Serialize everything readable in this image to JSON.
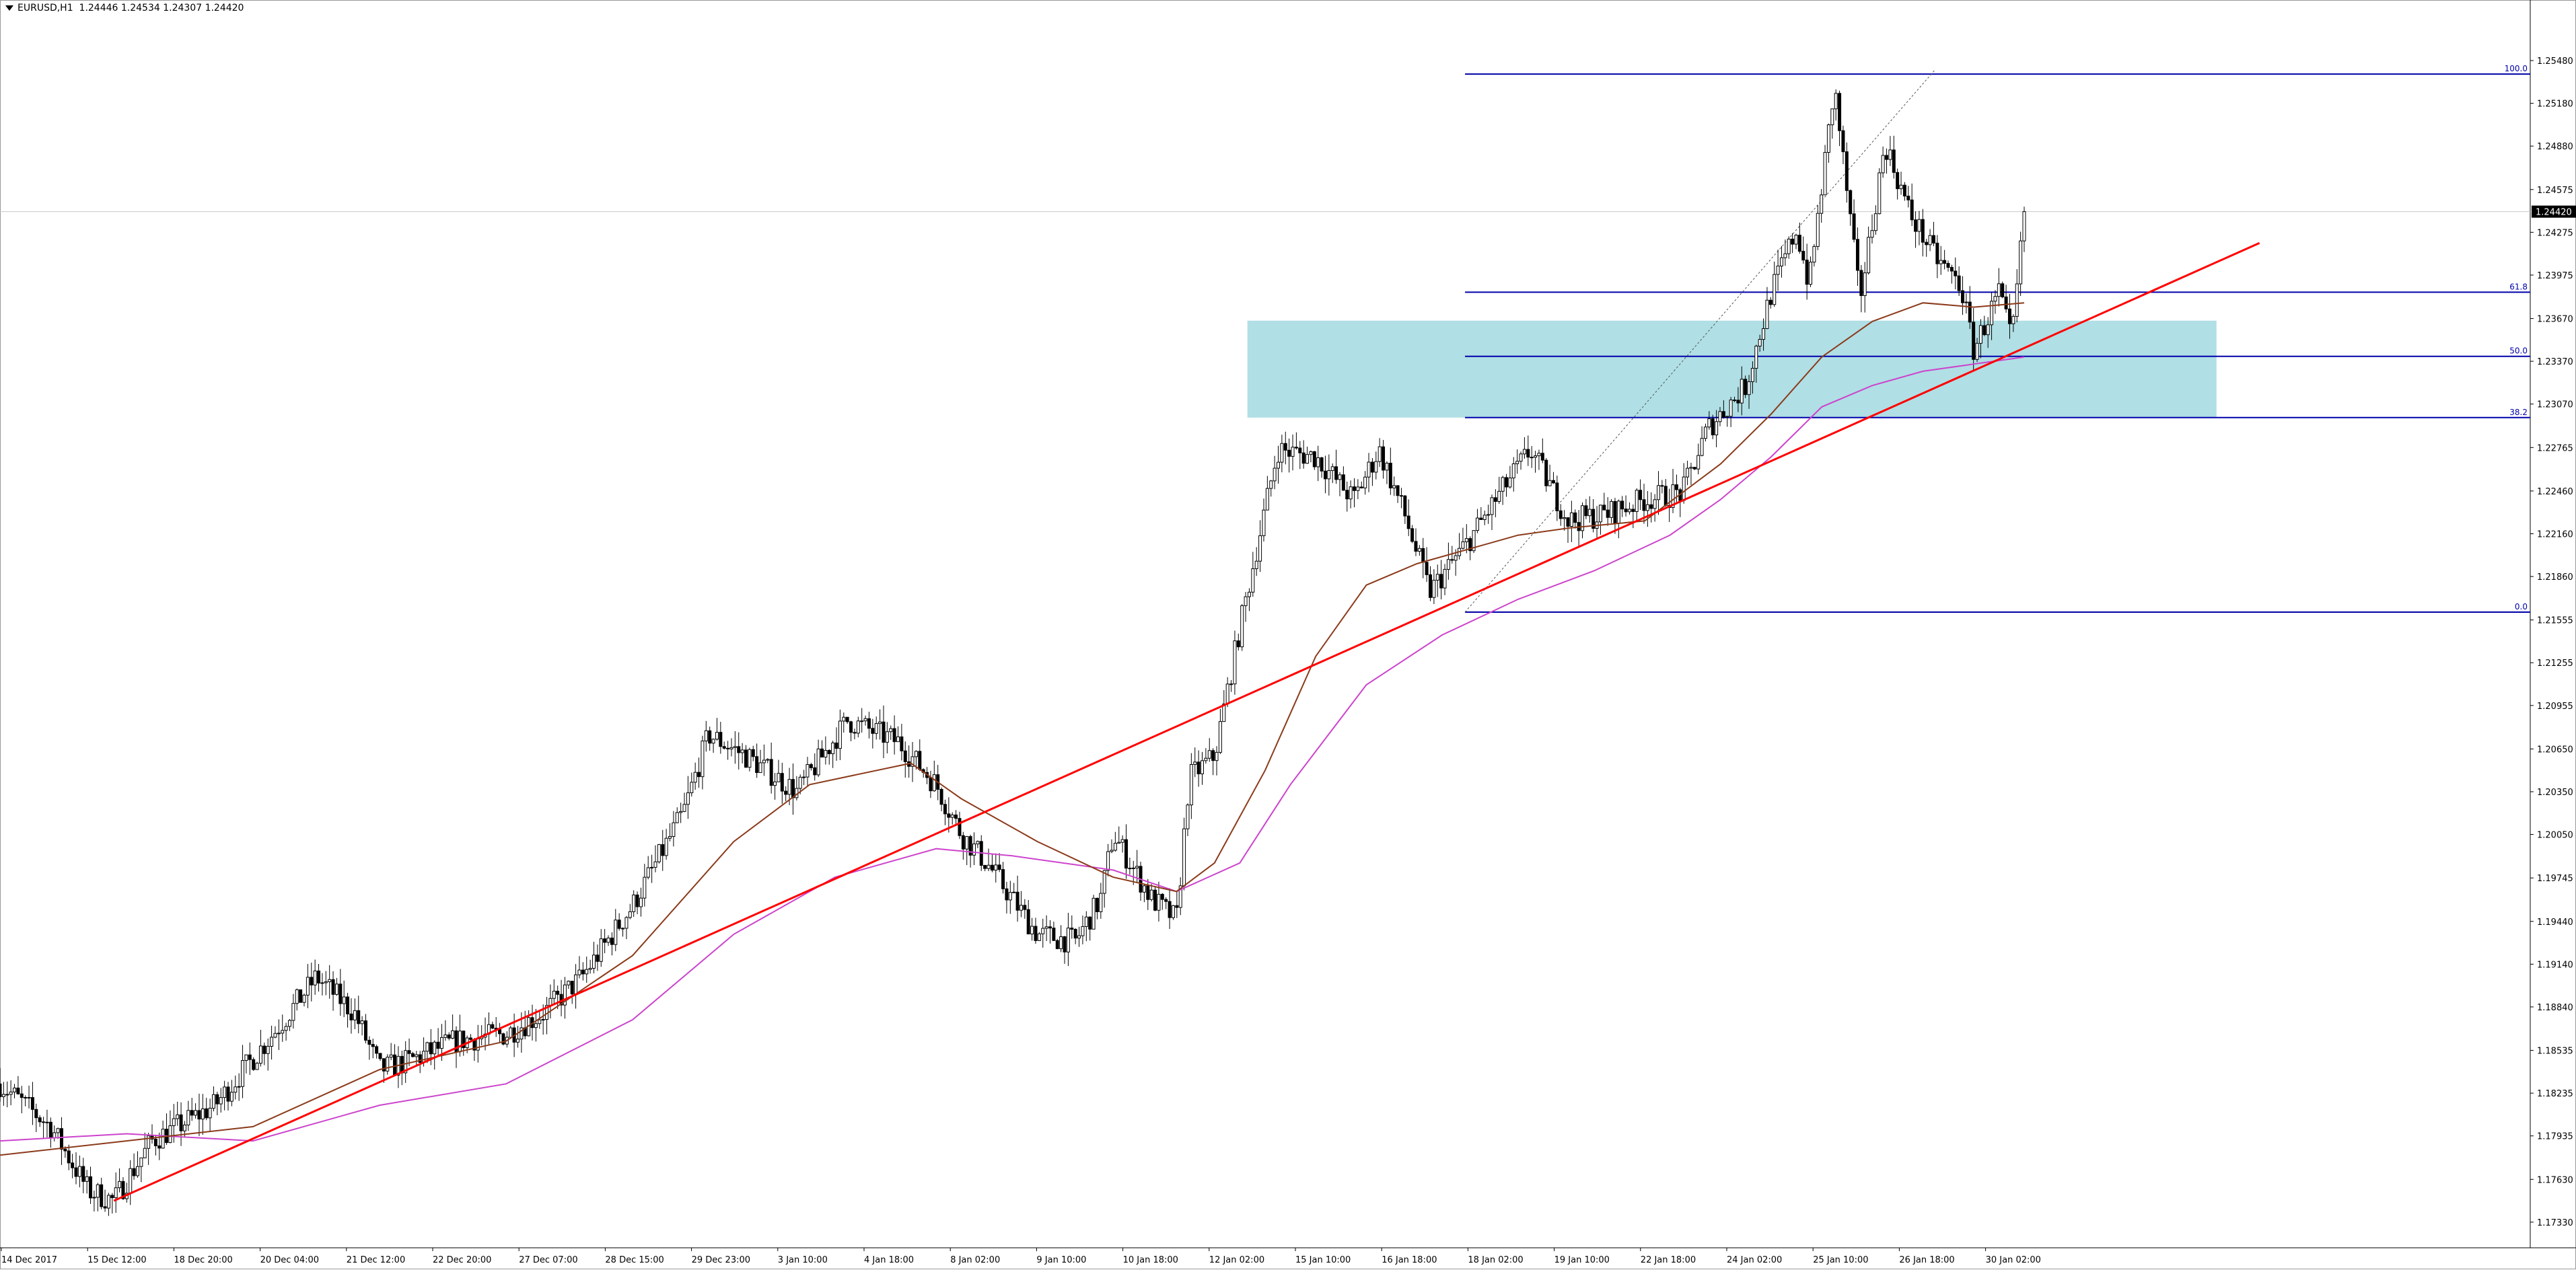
{
  "header": {
    "title": "EURUSD,H1",
    "ohlc": "1.24446 1.24534 1.24307 1.24420"
  },
  "price_tag": "1.24420",
  "fib_labels": [
    "100.0",
    "61.8",
    "50.0",
    "38.2",
    "0.0"
  ],
  "colors": {
    "background": "#ffffff",
    "candle": "#000000",
    "ma_fast": "#8b3a1a",
    "ma_slow": "#cc44cc",
    "trendline": "#ff0000",
    "fib_lines": "#0000aa",
    "zone": "#b0dfe5",
    "price_tag_bg": "#000000"
  },
  "chart_data": {
    "type": "candlestick",
    "symbol": "EURUSD",
    "timeframe": "H1",
    "last": {
      "open": 1.24446,
      "high": 1.24534,
      "low": 1.24307,
      "close": 1.2442
    },
    "ylim": [
      1.1715,
      1.2582
    ],
    "y_ticks": [
      "1.25480",
      "1.25180",
      "1.24880",
      "1.24575",
      "1.24275",
      "1.23975",
      "1.23670",
      "1.23370",
      "1.23070",
      "1.22765",
      "1.22460",
      "1.22160",
      "1.21860",
      "1.21555",
      "1.21255",
      "1.20955",
      "1.20650",
      "1.20350",
      "1.20050",
      "1.19745",
      "1.19440",
      "1.19140",
      "1.18840",
      "1.18535",
      "1.18235",
      "1.17935",
      "1.17630",
      "1.17330"
    ],
    "x_ticks": [
      "14 Dec 2017",
      "15 Dec 12:00",
      "18 Dec 20:00",
      "20 Dec 04:00",
      "21 Dec 12:00",
      "22 Dec 20:00",
      "27 Dec 07:00",
      "28 Dec 15:00",
      "29 Dec 23:00",
      "3 Jan 10:00",
      "4 Jan 18:00",
      "8 Jan 02:00",
      "9 Jan 10:00",
      "10 Jan 18:00",
      "12 Jan 02:00",
      "15 Jan 10:00",
      "16 Jan 18:00",
      "18 Jan 02:00",
      "19 Jan 10:00",
      "22 Jan 18:00",
      "24 Jan 02:00",
      "25 Jan 10:00",
      "26 Jan 18:00",
      "30 Jan 02:00"
    ],
    "price_path": [
      [
        0,
        1.183
      ],
      [
        0.02,
        1.18
      ],
      [
        0.035,
        1.1755
      ],
      [
        0.045,
        1.1748
      ],
      [
        0.06,
        1.179
      ],
      [
        0.085,
        1.1815
      ],
      [
        0.11,
        1.187
      ],
      [
        0.125,
        1.1905
      ],
      [
        0.14,
        1.188
      ],
      [
        0.15,
        1.184
      ],
      [
        0.16,
        1.1845
      ],
      [
        0.18,
        1.186
      ],
      [
        0.2,
        1.1865
      ],
      [
        0.215,
        1.188
      ],
      [
        0.23,
        1.1905
      ],
      [
        0.25,
        1.1955
      ],
      [
        0.27,
        1.202
      ],
      [
        0.28,
        1.2075
      ],
      [
        0.295,
        1.206
      ],
      [
        0.315,
        1.2035
      ],
      [
        0.335,
        1.2085
      ],
      [
        0.355,
        1.207
      ],
      [
        0.37,
        1.204
      ],
      [
        0.38,
        1.2005
      ],
      [
        0.39,
        1.1985
      ],
      [
        0.41,
        1.1935
      ],
      [
        0.425,
        1.193
      ],
      [
        0.435,
        1.196
      ],
      [
        0.44,
        1.2005
      ],
      [
        0.455,
        1.196
      ],
      [
        0.465,
        1.1945
      ],
      [
        0.47,
        1.2045
      ],
      [
        0.48,
        1.206
      ],
      [
        0.49,
        1.215
      ],
      [
        0.505,
        1.2275
      ],
      [
        0.52,
        1.227
      ],
      [
        0.535,
        1.224
      ],
      [
        0.545,
        1.2275
      ],
      [
        0.555,
        1.223
      ],
      [
        0.565,
        1.2175
      ],
      [
        0.58,
        1.221
      ],
      [
        0.595,
        1.225
      ],
      [
        0.605,
        1.2275
      ],
      [
        0.62,
        1.2225
      ],
      [
        0.635,
        1.223
      ],
      [
        0.65,
        1.224
      ],
      [
        0.665,
        1.2245
      ],
      [
        0.675,
        1.229
      ],
      [
        0.69,
        1.232
      ],
      [
        0.7,
        1.2385
      ],
      [
        0.71,
        1.243
      ],
      [
        0.715,
        1.239
      ],
      [
        0.725,
        1.253
      ],
      [
        0.735,
        1.238
      ],
      [
        0.745,
        1.249
      ],
      [
        0.755,
        1.244
      ],
      [
        0.765,
        1.241
      ],
      [
        0.775,
        1.239
      ],
      [
        0.78,
        1.2345
      ],
      [
        0.79,
        1.2385
      ],
      [
        0.795,
        1.235
      ],
      [
        0.8,
        1.244
      ]
    ],
    "ma_fast": [
      [
        0,
        1.178
      ],
      [
        0.05,
        1.179
      ],
      [
        0.1,
        1.18
      ],
      [
        0.15,
        1.184
      ],
      [
        0.2,
        1.186
      ],
      [
        0.25,
        1.192
      ],
      [
        0.29,
        1.2
      ],
      [
        0.32,
        1.204
      ],
      [
        0.36,
        1.2055
      ],
      [
        0.38,
        1.203
      ],
      [
        0.41,
        1.2
      ],
      [
        0.44,
        1.1975
      ],
      [
        0.465,
        1.1965
      ],
      [
        0.48,
        1.1985
      ],
      [
        0.5,
        1.205
      ],
      [
        0.52,
        1.213
      ],
      [
        0.54,
        1.218
      ],
      [
        0.56,
        1.2195
      ],
      [
        0.58,
        1.2205
      ],
      [
        0.6,
        1.2215
      ],
      [
        0.62,
        1.222
      ],
      [
        0.65,
        1.2225
      ],
      [
        0.68,
        1.2265
      ],
      [
        0.7,
        1.23
      ],
      [
        0.72,
        1.234
      ],
      [
        0.74,
        1.2365
      ],
      [
        0.76,
        1.2378
      ],
      [
        0.78,
        1.2375
      ],
      [
        0.8,
        1.2378
      ]
    ],
    "ma_slow": [
      [
        0,
        1.179
      ],
      [
        0.05,
        1.1795
      ],
      [
        0.1,
        1.179
      ],
      [
        0.15,
        1.1815
      ],
      [
        0.2,
        1.183
      ],
      [
        0.25,
        1.1875
      ],
      [
        0.29,
        1.1935
      ],
      [
        0.33,
        1.1975
      ],
      [
        0.37,
        1.1995
      ],
      [
        0.4,
        1.199
      ],
      [
        0.44,
        1.198
      ],
      [
        0.465,
        1.1965
      ],
      [
        0.49,
        1.1985
      ],
      [
        0.51,
        1.204
      ],
      [
        0.54,
        1.211
      ],
      [
        0.57,
        1.2145
      ],
      [
        0.6,
        1.217
      ],
      [
        0.63,
        1.219
      ],
      [
        0.66,
        1.2215
      ],
      [
        0.68,
        1.224
      ],
      [
        0.7,
        1.227
      ],
      [
        0.72,
        1.2305
      ],
      [
        0.74,
        1.232
      ],
      [
        0.76,
        1.233
      ],
      [
        0.78,
        1.2335
      ],
      [
        0.8,
        1.234
      ]
    ],
    "trendline": {
      "start": [
        0.045,
        1.1748
      ],
      "end": [
        0.893,
        1.242
      ]
    },
    "fibonacci": {
      "x_start": 0.579,
      "levels": [
        {
          "label": "100.0",
          "price": 1.25385
        },
        {
          "label": "61.8",
          "price": 1.23855
        },
        {
          "label": "50.0",
          "price": 1.23405
        },
        {
          "label": "38.2",
          "price": 1.22975
        },
        {
          "label": "0.0",
          "price": 1.2161
        }
      ],
      "diagonal": {
        "start": [
          0.579,
          1.2161
        ],
        "end": [
          0.765,
          1.2542
        ]
      }
    },
    "zone": {
      "x_start": 0.493,
      "x_end": 0.876,
      "price_top": 1.23655,
      "price_bottom": 1.22975
    },
    "current_price": 1.2442
  }
}
